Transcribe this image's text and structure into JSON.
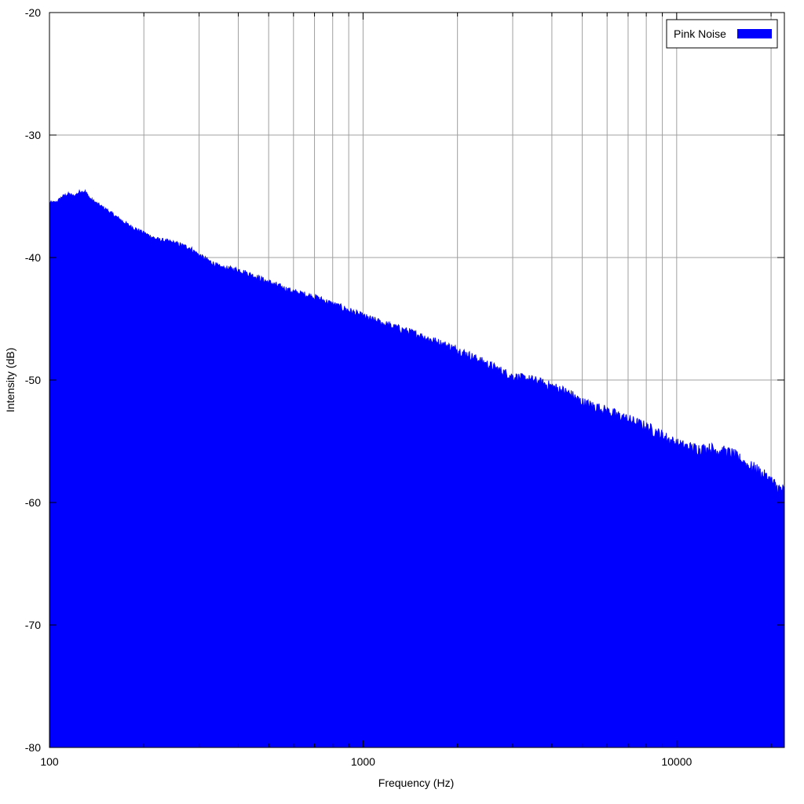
{
  "chart_data": {
    "type": "area",
    "xlabel": "Frequency (Hz)",
    "ylabel": "Intensity (dB)",
    "x_scale": "log",
    "xlim": [
      100,
      22050
    ],
    "ylim": [
      -80,
      -20
    ],
    "x_ticks": [
      {
        "value": 100,
        "label": "100"
      },
      {
        "value": 1000,
        "label": "1000"
      },
      {
        "value": 10000,
        "label": "10000"
      }
    ],
    "x_minor_gridlines": [
      200,
      300,
      400,
      500,
      600,
      700,
      800,
      900,
      2000,
      3000,
      4000,
      5000,
      6000,
      7000,
      8000,
      9000,
      20000
    ],
    "y_ticks": [
      {
        "value": -20,
        "label": "-20"
      },
      {
        "value": -30,
        "label": "-30"
      },
      {
        "value": -40,
        "label": "-40"
      },
      {
        "value": -50,
        "label": "-50"
      },
      {
        "value": -60,
        "label": "-60"
      },
      {
        "value": -70,
        "label": "-70"
      },
      {
        "value": -80,
        "label": "-80"
      }
    ],
    "grid": true,
    "legend": {
      "position": "top-right"
    },
    "series": [
      {
        "name": "Pink Noise",
        "color": "#0000ff",
        "x": [
          100,
          105,
          110,
          115,
          120,
          125,
          130,
          135,
          140,
          150,
          160,
          170,
          180,
          200,
          220,
          250,
          280,
          300,
          350,
          400,
          450,
          500,
          600,
          700,
          800,
          900,
          1000,
          1200,
          1500,
          2000,
          2500,
          3000,
          3500,
          4000,
          4500,
          5000,
          6000,
          7000,
          8000,
          9000,
          10000,
          11000,
          12000,
          13000,
          14000,
          15000,
          16000,
          17000,
          18000,
          19000,
          20000,
          21000,
          22050
        ],
        "y": [
          -35.5,
          -35.5,
          -35.0,
          -34.8,
          -35.0,
          -34.6,
          -34.6,
          -35.2,
          -35.5,
          -36.0,
          -36.5,
          -37.0,
          -37.4,
          -38.0,
          -38.5,
          -38.8,
          -39.2,
          -39.8,
          -40.8,
          -41.0,
          -41.5,
          -42.0,
          -42.8,
          -43.2,
          -43.8,
          -44.3,
          -44.8,
          -45.5,
          -46.3,
          -47.5,
          -48.7,
          -49.7,
          -50.0,
          -50.5,
          -51.0,
          -51.8,
          -52.5,
          -53.2,
          -53.8,
          -54.5,
          -55.2,
          -55.5,
          -55.6,
          -55.6,
          -55.8,
          -56.0,
          -56.5,
          -57.0,
          -57.3,
          -57.8,
          -58.2,
          -58.8,
          -59.0
        ]
      }
    ]
  }
}
